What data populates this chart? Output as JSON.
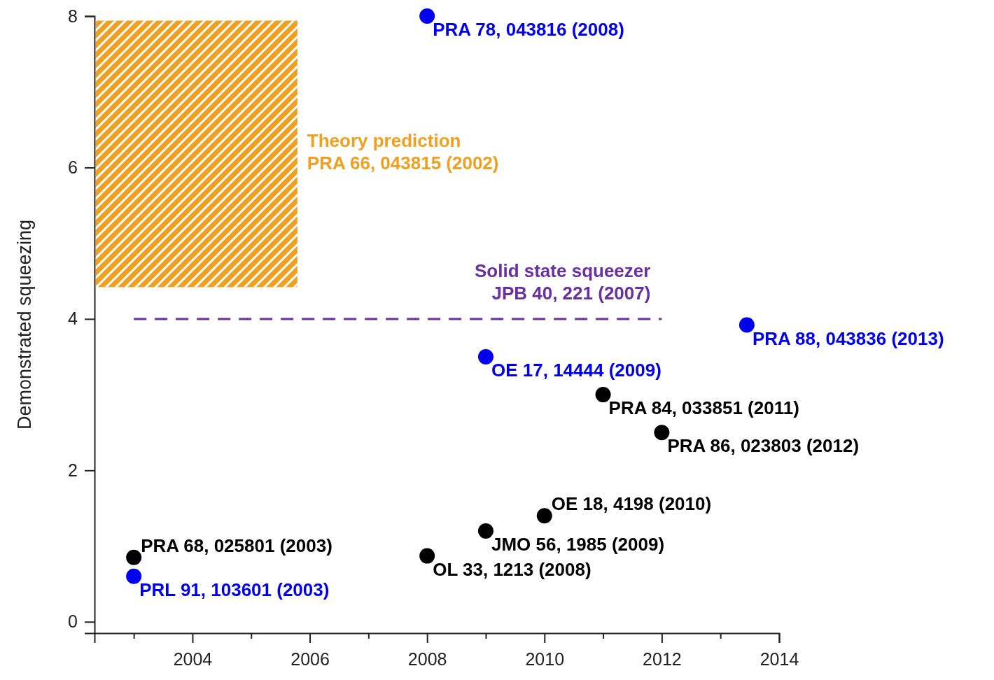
{
  "chart_data": {
    "type": "scatter",
    "ylabel": "Demonstrated squeezing",
    "xlim": [
      2002.33,
      2014
    ],
    "ylim": [
      -0.15,
      8
    ],
    "xticks": [
      {
        "value": 2003,
        "label": null
      },
      2004,
      {
        "value": 2005,
        "label": null
      },
      2006,
      {
        "value": 2007,
        "label": null
      },
      2008,
      {
        "value": 2009,
        "label": null
      },
      2010,
      {
        "value": 2011,
        "label": null
      },
      2012,
      {
        "value": 2013,
        "label": null
      },
      2014
    ],
    "yticks": [
      0,
      2,
      4,
      6,
      8
    ],
    "grid": false,
    "legend": false,
    "marker": "circle",
    "series": [
      {
        "type": "bar",
        "name": "Theory prediction\nPRA 66, 043815 (2002)",
        "color": "#f0a020",
        "x": [
          2004.07
        ],
        "base": [
          4.42
        ],
        "values": [
          3.52
        ]
      },
      {
        "type": "line",
        "name": "Solid state squeezer\nJPB 40, 221 (2007)",
        "color": "#6a2fa0",
        "line_style": "dashed",
        "marker": "none",
        "x": [
          2003,
          2012
        ],
        "values": [
          4,
          4
        ]
      },
      {
        "color": "#0000ee",
        "x": [
          2008,
          2009,
          2013.45,
          2003
        ],
        "values": [
          8.0,
          3.5,
          3.92,
          0.6
        ],
        "value_labels": [
          "PRA 78, 043816 (2008)",
          "OE 17, 14444 (2009)",
          "PRA 88, 043836 (2013)",
          "PRL 91, 103601 (2003)"
        ]
      },
      {
        "color": "#000000",
        "x": [
          2003,
          2008,
          2009,
          2010,
          2011,
          2012
        ],
        "values": [
          0.85,
          0.87,
          1.2,
          1.4,
          3.0,
          2.5
        ],
        "value_labels": [
          "PRA 68, 025801 (2003)",
          "OL 33, 1213 (2008)",
          "JMO 56, 1985 (2009)",
          "OE 18, 4198 (2010)",
          "PRA 84, 033851 (2011)",
          "PRA 86, 023803 (2012)"
        ]
      }
    ]
  }
}
